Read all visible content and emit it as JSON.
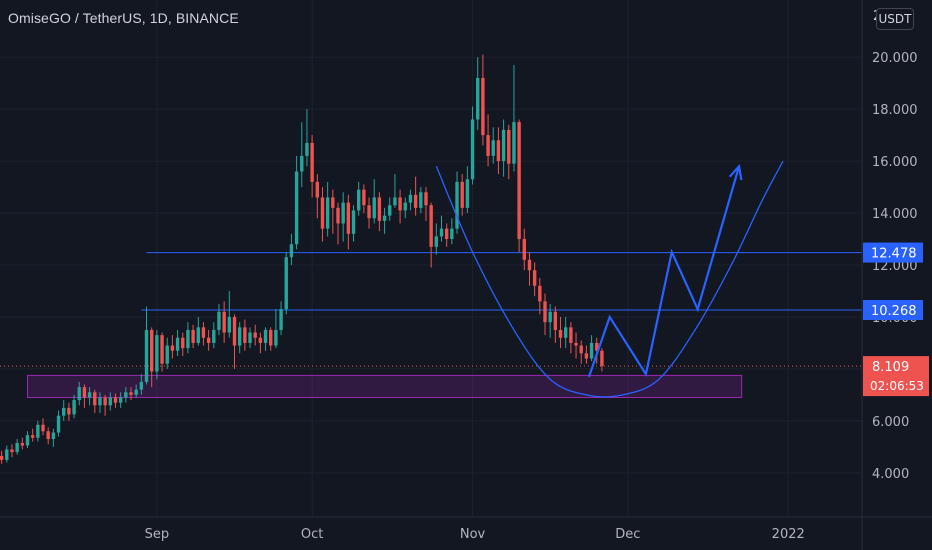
{
  "header": {
    "title": "OmiseGO / TetherUS, 1D, BINANCE"
  },
  "currency_button": "USDT",
  "colors": {
    "background": "#131722",
    "up": "#26a69a",
    "down": "#ef5350",
    "drawing": "#2962ff",
    "zone": "#9c27b0",
    "price_tag": "#ef5350"
  },
  "chart_data": {
    "type": "candlestick",
    "x_axis": {
      "ticks": [
        "Sep",
        "Oct",
        "Nov",
        "Dec",
        "2022"
      ],
      "tick_days": [
        31,
        61,
        92,
        122,
        153
      ]
    },
    "y_axis": {
      "ticks": [
        "4.000",
        "6.000",
        "8.000",
        "10.000",
        "12.000",
        "14.000",
        "16.000",
        "18.000",
        "20.000"
      ],
      "tick_values": [
        4,
        6,
        8,
        10,
        12,
        14,
        16,
        18,
        20
      ],
      "ylim": [
        2.3,
        22.2
      ],
      "top_label": "2"
    },
    "price_now": {
      "value": "8.109",
      "countdown": "02:06:53"
    },
    "levels": [
      {
        "label": "12.478",
        "value": 12.478,
        "from_day": 29
      },
      {
        "label": "10.268",
        "value": 10.268,
        "from_day": 28
      }
    ],
    "zone": {
      "from_day": 6,
      "to_day": 144,
      "low": 6.9,
      "high": 7.75
    },
    "projection": [
      [
        114.5,
        7.7
      ],
      [
        118.5,
        10.0
      ],
      [
        125.5,
        7.8
      ],
      [
        130.5,
        12.5
      ],
      [
        135.5,
        10.3
      ],
      [
        143.5,
        15.8
      ]
    ],
    "arc_points": [
      [
        85,
        15.8
      ],
      [
        92,
        12.5
      ],
      [
        100,
        9.5
      ],
      [
        107,
        7.6
      ],
      [
        114,
        7.0
      ],
      [
        121,
        7.0
      ],
      [
        128,
        7.6
      ],
      [
        135,
        9.5
      ],
      [
        142,
        12.0
      ],
      [
        148,
        14.5
      ],
      [
        152,
        16.0
      ]
    ],
    "candles": [
      [
        1,
        4.65,
        4.5,
        4.85,
        4.35
      ],
      [
        2,
        4.5,
        4.9,
        5.05,
        4.4
      ],
      [
        3,
        4.9,
        4.8,
        5.1,
        4.6
      ],
      [
        4,
        4.8,
        5.15,
        5.3,
        4.7
      ],
      [
        5,
        5.15,
        5.05,
        5.35,
        4.9
      ],
      [
        6,
        5.05,
        5.45,
        5.6,
        4.95
      ],
      [
        7,
        5.45,
        5.35,
        5.7,
        5.2
      ],
      [
        8,
        5.35,
        5.85,
        6.0,
        5.2
      ],
      [
        9,
        5.85,
        5.6,
        6.1,
        5.45
      ],
      [
        10,
        5.6,
        5.3,
        5.75,
        5.1
      ],
      [
        11,
        5.3,
        5.55,
        5.7,
        5.0
      ],
      [
        12,
        5.55,
        6.2,
        6.4,
        5.4
      ],
      [
        13,
        6.2,
        6.5,
        6.8,
        6.0
      ],
      [
        14,
        6.5,
        6.25,
        6.7,
        6.0
      ],
      [
        15,
        6.25,
        6.8,
        7.0,
        6.1
      ],
      [
        16,
        6.8,
        7.3,
        7.5,
        6.6
      ],
      [
        17,
        7.3,
        6.9,
        7.4,
        6.5
      ],
      [
        18,
        6.9,
        7.1,
        7.3,
        6.6
      ],
      [
        19,
        7.1,
        6.6,
        7.2,
        6.3
      ],
      [
        20,
        6.6,
        6.9,
        7.1,
        6.3
      ],
      [
        21,
        6.9,
        6.6,
        7.0,
        6.2
      ],
      [
        22,
        6.6,
        6.9,
        7.1,
        6.4
      ],
      [
        23,
        6.9,
        6.7,
        7.05,
        6.5
      ],
      [
        24,
        6.7,
        6.9,
        7.1,
        6.5
      ],
      [
        25,
        6.9,
        7.1,
        7.3,
        6.7
      ],
      [
        26,
        7.1,
        7.0,
        7.3,
        6.8
      ],
      [
        27,
        7.0,
        7.2,
        7.4,
        6.9
      ],
      [
        28,
        7.2,
        7.5,
        7.8,
        7.0
      ],
      [
        29,
        7.5,
        9.5,
        10.4,
        7.4
      ],
      [
        30,
        9.5,
        7.9,
        9.6,
        7.3
      ],
      [
        31,
        7.9,
        9.3,
        9.5,
        7.6
      ],
      [
        32,
        9.3,
        8.2,
        9.4,
        7.9
      ],
      [
        33,
        8.2,
        8.9,
        9.2,
        8.0
      ],
      [
        34,
        8.9,
        8.7,
        9.3,
        8.4
      ],
      [
        35,
        8.7,
        9.2,
        9.5,
        8.5
      ],
      [
        36,
        9.2,
        8.8,
        9.4,
        8.5
      ],
      [
        37,
        8.8,
        9.5,
        9.8,
        8.6
      ],
      [
        38,
        9.5,
        9.0,
        9.7,
        8.8
      ],
      [
        39,
        9.0,
        9.6,
        10.0,
        8.9
      ],
      [
        40,
        9.6,
        9.2,
        9.8,
        8.9
      ],
      [
        41,
        9.2,
        9.0,
        9.5,
        8.7
      ],
      [
        42,
        9.0,
        9.5,
        9.8,
        8.8
      ],
      [
        43,
        9.5,
        10.2,
        10.5,
        9.3
      ],
      [
        44,
        10.2,
        9.4,
        10.6,
        9.0
      ],
      [
        45,
        9.4,
        10.0,
        11.0,
        9.2
      ],
      [
        46,
        10.0,
        8.9,
        10.1,
        8.0
      ],
      [
        47,
        8.9,
        9.6,
        9.8,
        8.6
      ],
      [
        48,
        9.6,
        9.0,
        9.9,
        8.7
      ],
      [
        49,
        9.0,
        9.4,
        9.6,
        8.8
      ],
      [
        50,
        9.4,
        9.2,
        9.7,
        8.9
      ],
      [
        51,
        9.2,
        9.0,
        9.4,
        8.6
      ],
      [
        52,
        9.0,
        9.5,
        9.6,
        8.7
      ],
      [
        53,
        9.5,
        8.9,
        9.6,
        8.7
      ],
      [
        54,
        8.9,
        9.5,
        10.3,
        8.8
      ],
      [
        55,
        9.5,
        10.3,
        10.6,
        9.3
      ],
      [
        56,
        10.3,
        12.3,
        12.5,
        10.1
      ],
      [
        57,
        12.3,
        12.8,
        13.2,
        12.0
      ],
      [
        58,
        12.8,
        15.6,
        16.2,
        12.6
      ],
      [
        59,
        15.6,
        16.2,
        17.5,
        15.0
      ],
      [
        60,
        16.2,
        16.7,
        18.0,
        15.8
      ],
      [
        61,
        16.7,
        15.2,
        17.0,
        14.6
      ],
      [
        62,
        15.2,
        14.6,
        15.5,
        13.8
      ],
      [
        63,
        14.6,
        13.4,
        15.0,
        12.9
      ],
      [
        64,
        13.4,
        14.6,
        15.2,
        13.1
      ],
      [
        65,
        14.6,
        14.2,
        14.9,
        13.2
      ],
      [
        66,
        14.2,
        13.6,
        14.4,
        12.8
      ],
      [
        67,
        13.6,
        14.4,
        14.8,
        12.9
      ],
      [
        68,
        14.4,
        13.2,
        14.7,
        12.6
      ],
      [
        69,
        13.2,
        14.1,
        14.3,
        12.9
      ],
      [
        70,
        14.1,
        14.9,
        15.2,
        13.9
      ],
      [
        71,
        14.9,
        14.3,
        15.1,
        14.0
      ],
      [
        72,
        14.3,
        13.8,
        14.6,
        13.4
      ],
      [
        73,
        13.8,
        14.6,
        15.3,
        13.6
      ],
      [
        74,
        14.6,
        13.7,
        14.8,
        13.3
      ],
      [
        75,
        13.7,
        13.9,
        14.2,
        13.2
      ],
      [
        76,
        13.9,
        14.3,
        14.6,
        13.7
      ],
      [
        77,
        14.3,
        14.6,
        15.5,
        14.2
      ],
      [
        78,
        14.6,
        14.1,
        14.9,
        13.6
      ],
      [
        79,
        14.1,
        14.4,
        14.6,
        13.8
      ],
      [
        80,
        14.4,
        14.7,
        14.9,
        14.1
      ],
      [
        81,
        14.7,
        14.2,
        15.4,
        13.9
      ],
      [
        82,
        14.2,
        14.8,
        15.0,
        14.0
      ],
      [
        83,
        14.8,
        14.3,
        15.0,
        13.7
      ],
      [
        84,
        14.3,
        12.7,
        14.4,
        11.9
      ],
      [
        85,
        12.7,
        13.1,
        13.6,
        12.4
      ],
      [
        86,
        13.1,
        13.4,
        13.9,
        12.9
      ],
      [
        87,
        13.4,
        13.0,
        13.6,
        12.7
      ],
      [
        88,
        13.0,
        13.4,
        13.8,
        12.8
      ],
      [
        89,
        13.4,
        15.2,
        15.6,
        13.2
      ],
      [
        90,
        15.2,
        14.2,
        15.5,
        13.9
      ],
      [
        91,
        14.2,
        15.3,
        15.8,
        14.0
      ],
      [
        92,
        15.3,
        17.6,
        18.1,
        15.1
      ],
      [
        93,
        17.6,
        19.2,
        20.0,
        17.2
      ],
      [
        94,
        19.2,
        17.0,
        20.1,
        16.6
      ],
      [
        95,
        17.0,
        16.2,
        17.8,
        15.8
      ],
      [
        96,
        16.2,
        16.8,
        17.3,
        15.9
      ],
      [
        97,
        16.8,
        16.0,
        17.3,
        15.5
      ],
      [
        98,
        16.0,
        17.2,
        17.6,
        15.4
      ],
      [
        99,
        17.2,
        15.9,
        17.4,
        15.3
      ],
      [
        100,
        15.9,
        17.5,
        19.7,
        15.6
      ],
      [
        101,
        17.5,
        13.0,
        17.6,
        12.5
      ],
      [
        102,
        13.0,
        12.2,
        13.4,
        11.8
      ],
      [
        103,
        12.2,
        11.8,
        12.5,
        11.2
      ],
      [
        104,
        11.8,
        11.2,
        12.1,
        10.8
      ],
      [
        105,
        11.2,
        10.6,
        11.5,
        10.1
      ],
      [
        106,
        10.6,
        9.8,
        10.9,
        9.3
      ],
      [
        107,
        9.8,
        10.2,
        10.5,
        9.2
      ],
      [
        108,
        10.2,
        9.5,
        10.4,
        9.0
      ],
      [
        109,
        9.5,
        9.2,
        10.0,
        8.8
      ],
      [
        110,
        9.2,
        9.6,
        10.0,
        8.8
      ],
      [
        111,
        9.6,
        9.0,
        9.8,
        8.6
      ],
      [
        112,
        9.0,
        8.9,
        9.4,
        8.4
      ],
      [
        113,
        8.9,
        8.6,
        9.1,
        8.2
      ],
      [
        114,
        8.6,
        8.4,
        8.9,
        8.2
      ],
      [
        115,
        8.4,
        9.0,
        9.3,
        8.3
      ],
      [
        116,
        9.0,
        8.7,
        9.2,
        8.2
      ],
      [
        117,
        8.7,
        8.109,
        8.8,
        7.9
      ]
    ]
  }
}
